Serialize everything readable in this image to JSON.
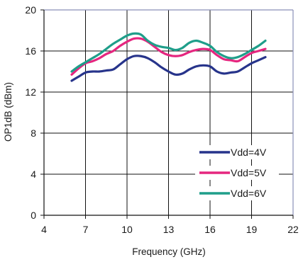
{
  "chart_data": {
    "type": "line",
    "xlabel": "Frequency (GHz)",
    "ylabel": "OP1dB (dBm)",
    "xlim": [
      4,
      22
    ],
    "ylim": [
      0,
      20
    ],
    "xticks": [
      4,
      7,
      10,
      13,
      16,
      19,
      22
    ],
    "yticks": [
      0,
      4,
      8,
      12,
      16,
      20
    ],
    "grid": true,
    "legend_position": "bottom-right",
    "series": [
      {
        "name": "Vdd=4V",
        "color": "#27348b",
        "x": [
          6,
          6.5,
          7,
          7.5,
          8,
          8.5,
          9,
          9.5,
          10,
          10.5,
          11,
          11.5,
          12,
          12.5,
          13,
          13.5,
          14,
          14.5,
          15,
          15.5,
          16,
          16.5,
          17,
          17.5,
          18,
          18.5,
          19,
          19.5,
          20
        ],
        "y": [
          13.1,
          13.5,
          13.9,
          14.0,
          14.0,
          14.1,
          14.2,
          14.7,
          15.2,
          15.5,
          15.5,
          15.3,
          14.9,
          14.4,
          14.0,
          13.7,
          13.8,
          14.2,
          14.5,
          14.6,
          14.5,
          14.0,
          13.8,
          13.9,
          14.0,
          14.4,
          14.8,
          15.1,
          15.4
        ]
      },
      {
        "name": "Vdd=5V",
        "color": "#e5267f",
        "x": [
          6,
          6.5,
          7,
          7.5,
          8,
          8.5,
          9,
          9.5,
          10,
          10.5,
          11,
          11.5,
          12,
          12.5,
          13,
          13.5,
          14,
          14.5,
          15,
          15.5,
          16,
          16.5,
          17,
          17.5,
          18,
          18.5,
          19,
          19.5,
          20
        ],
        "y": [
          13.7,
          14.3,
          14.8,
          15.0,
          15.3,
          15.7,
          16.0,
          16.5,
          16.9,
          17.2,
          17.2,
          16.9,
          16.4,
          15.9,
          15.6,
          15.5,
          15.6,
          15.9,
          16.1,
          16.2,
          16.1,
          15.6,
          15.2,
          15.1,
          15.0,
          15.4,
          15.8,
          16.0,
          16.2
        ]
      },
      {
        "name": "Vdd=6V",
        "color": "#1f9e8a",
        "x": [
          6,
          6.5,
          7,
          7.5,
          8,
          8.5,
          9,
          9.5,
          10,
          10.5,
          11,
          11.5,
          12,
          12.5,
          13,
          13.5,
          14,
          14.5,
          15,
          15.5,
          16,
          16.5,
          17,
          17.5,
          18,
          18.5,
          19,
          19.5,
          20
        ],
        "y": [
          14.0,
          14.5,
          14.9,
          15.3,
          15.7,
          16.2,
          16.7,
          17.1,
          17.5,
          17.7,
          17.6,
          17.0,
          16.6,
          16.4,
          16.3,
          16.1,
          16.3,
          16.8,
          17.0,
          16.8,
          16.5,
          15.9,
          15.5,
          15.3,
          15.4,
          15.7,
          16.1,
          16.5,
          17.0
        ]
      }
    ]
  }
}
